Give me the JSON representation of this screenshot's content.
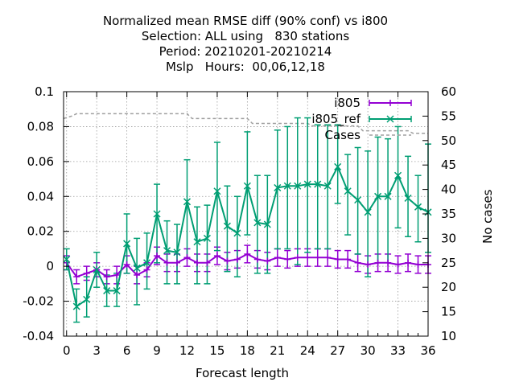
{
  "chart_data": {
    "type": "line",
    "title_lines": [
      "Normalized mean RMSE diff (90% conf) vs i800",
      "Selection: ALL using   830 stations",
      "Period: 20210201-20210214",
      "Mslp   Hours:  00,06,12,18"
    ],
    "xlabel": "Forecast length",
    "ylabel": "",
    "y2label": "No cases",
    "xlim": [
      -0.3,
      36
    ],
    "ylim": [
      -0.04,
      0.1
    ],
    "y2lim": [
      10,
      60
    ],
    "xticks": [
      0,
      3,
      6,
      9,
      12,
      15,
      18,
      21,
      24,
      27,
      30,
      33,
      36
    ],
    "xtick_labels": [
      "0",
      "3",
      "6",
      "9",
      "12",
      "15",
      "18",
      "21",
      "24",
      "27",
      "30",
      "33",
      "36"
    ],
    "yticks": [
      -0.04,
      -0.02,
      0,
      0.02,
      0.04,
      0.06,
      0.08,
      0.1
    ],
    "ytick_labels": [
      "-0.04",
      "-0.02",
      "0",
      "0.02",
      "0.04",
      "0.06",
      "0.08",
      "0.1"
    ],
    "y2ticks": [
      10,
      15,
      20,
      25,
      30,
      35,
      40,
      45,
      50,
      55,
      60
    ],
    "y2tick_labels": [
      "10",
      "15",
      "20",
      "25",
      "30",
      "35",
      "40",
      "45",
      "50",
      "55",
      "60"
    ],
    "grid": true,
    "legend_position": "top-right",
    "x": [
      0,
      1,
      2,
      3,
      4,
      5,
      6,
      7,
      8,
      9,
      10,
      11,
      12,
      13,
      14,
      15,
      16,
      17,
      18,
      19,
      20,
      21,
      22,
      23,
      24,
      25,
      26,
      27,
      28,
      29,
      30,
      31,
      32,
      33,
      34,
      35,
      36
    ],
    "series": [
      {
        "name": "i805",
        "color": "#9400d3",
        "marker": "plus",
        "axis": "y",
        "values": [
          0.002,
          -0.006,
          -0.004,
          -0.002,
          -0.006,
          -0.005,
          0.001,
          -0.005,
          -0.002,
          0.006,
          0.002,
          0.002,
          0.005,
          0.002,
          0.002,
          0.006,
          0.003,
          0.004,
          0.007,
          0.004,
          0.003,
          0.005,
          0.004,
          0.005,
          0.005,
          0.005,
          0.005,
          0.004,
          0.004,
          0.002,
          0.001,
          0.002,
          0.002,
          0.001,
          0.002,
          0.001,
          0.001
        ],
        "err_low": [
          -0.002,
          -0.01,
          -0.008,
          -0.006,
          -0.01,
          -0.01,
          -0.004,
          -0.01,
          -0.006,
          0.001,
          -0.003,
          -0.003,
          0.0,
          -0.003,
          -0.003,
          0.001,
          -0.002,
          -0.001,
          0.002,
          -0.001,
          -0.002,
          0.0,
          -0.001,
          0.0,
          0.0,
          0.0,
          0.0,
          -0.001,
          -0.001,
          -0.003,
          -0.004,
          -0.003,
          -0.003,
          -0.004,
          -0.003,
          -0.004,
          -0.004
        ],
        "err_high": [
          0.006,
          -0.002,
          0.0,
          0.002,
          -0.002,
          0.0,
          0.006,
          0.0,
          0.002,
          0.011,
          0.007,
          0.007,
          0.01,
          0.007,
          0.007,
          0.011,
          0.008,
          0.009,
          0.012,
          0.009,
          0.008,
          0.01,
          0.009,
          0.01,
          0.01,
          0.01,
          0.01,
          0.009,
          0.009,
          0.007,
          0.006,
          0.007,
          0.007,
          0.006,
          0.007,
          0.006,
          0.006
        ]
      },
      {
        "name": "i805_ref",
        "color": "#009e73",
        "marker": "cross",
        "axis": "y",
        "values": [
          0.004,
          -0.023,
          -0.019,
          -0.002,
          -0.014,
          -0.014,
          0.013,
          -0.001,
          0.002,
          0.03,
          0.009,
          0.008,
          0.037,
          0.014,
          0.016,
          0.043,
          0.023,
          0.019,
          0.046,
          0.025,
          0.024,
          0.045,
          0.046,
          0.046,
          0.047,
          0.047,
          0.046,
          0.057,
          0.043,
          0.038,
          0.031,
          0.04,
          0.04,
          0.052,
          0.039,
          0.034,
          0.031
        ],
        "err_low": [
          -0.002,
          -0.032,
          -0.029,
          -0.012,
          -0.023,
          -0.023,
          -0.004,
          -0.022,
          -0.013,
          0.002,
          -0.01,
          -0.01,
          0.005,
          -0.01,
          -0.01,
          0.009,
          -0.003,
          -0.006,
          0.018,
          -0.004,
          -0.004,
          0.01,
          0.01,
          0.001,
          0.008,
          0.01,
          0.01,
          0.036,
          0.018,
          0.007,
          -0.006,
          0.002,
          0.002,
          0.022,
          0.017,
          0.014,
          0.008
        ],
        "err_high": [
          0.01,
          -0.013,
          -0.006,
          0.008,
          -0.005,
          -0.004,
          0.03,
          0.016,
          0.019,
          0.047,
          0.026,
          0.024,
          0.061,
          0.034,
          0.035,
          0.071,
          0.046,
          0.04,
          0.077,
          0.052,
          0.052,
          0.078,
          0.08,
          0.085,
          0.085,
          0.081,
          0.081,
          0.081,
          0.064,
          0.068,
          0.066,
          0.074,
          0.073,
          0.08,
          0.063,
          0.052,
          0.07
        ]
      },
      {
        "name": "Cases",
        "color": "#a0a0a0",
        "style": "dashed",
        "axis": "y2",
        "x": [
          -0.3,
          0.5,
          1,
          9,
          11,
          12,
          12.5,
          17,
          18,
          18.5,
          23,
          24,
          24.5,
          29,
          29.5,
          34,
          34.5,
          36
        ],
        "values": [
          54.5,
          55,
          55.5,
          55.5,
          55.5,
          55.5,
          54.5,
          54.5,
          54.5,
          53.5,
          53.5,
          53.5,
          53,
          53,
          52,
          52,
          51.5,
          51.5
        ]
      }
    ]
  }
}
